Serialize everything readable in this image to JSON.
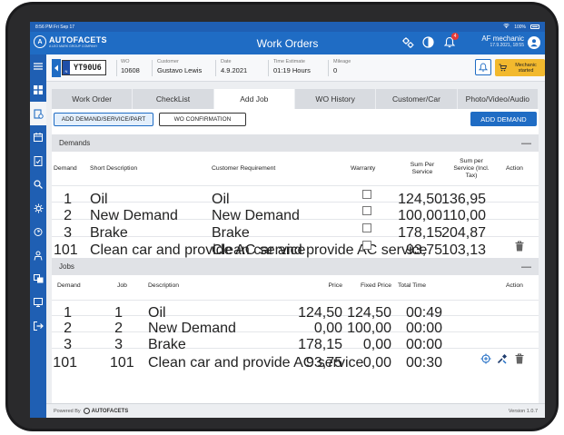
{
  "status_bar": {
    "time_date": "8:56 PM  Fri Sep 17",
    "battery": "100%"
  },
  "header": {
    "brand_name": "AUTOFACETS",
    "brand_sub": "A LEO MARK GROUP COMPANY",
    "title": "Work Orders",
    "notification_count": "4",
    "user_name": "AF mechanic",
    "user_date": "17.9.2021, 18:55"
  },
  "work_order": {
    "plate": "YT90U6",
    "plate_country": "N",
    "fields": [
      {
        "label": "WO",
        "value": "10608"
      },
      {
        "label": "Customer",
        "value": "Gustavo Lewis"
      },
      {
        "label": "Date",
        "value": "4.9.2021"
      },
      {
        "label": "Time Estimate",
        "value": "01:19 Hours"
      },
      {
        "label": "Mileage",
        "value": "0"
      }
    ],
    "mechanic_button": "Mechanic started"
  },
  "tabs": [
    {
      "label": "Work Order"
    },
    {
      "label": "CheckList"
    },
    {
      "label": "Add Job"
    },
    {
      "label": "WO History"
    },
    {
      "label": "Customer/Car"
    },
    {
      "label": "Photo/Video/Audio"
    }
  ],
  "actions": {
    "add_demand_service_part": "ADD DEMAND/SERVICE/PART",
    "wo_confirmation": "WO CONFIRMATION",
    "add_demand": "ADD DEMAND"
  },
  "demands": {
    "title": "Demands",
    "toggle": "—",
    "headers": {
      "demand": "Demand",
      "short_description": "Short Description",
      "customer_requirement": "Customer Requirement",
      "warranty": "Warranty",
      "sum_per_service": "Sum Per Service",
      "sum_incl_tax": "Sum per Service (Incl. Tax)",
      "action": "Action"
    },
    "rows": [
      {
        "demand": "1",
        "short": "Oil",
        "requirement": "Oil",
        "sum": "124,50",
        "sum_tax": "136,95"
      },
      {
        "demand": "2",
        "short": "New Demand",
        "requirement": "New Demand",
        "sum": "100,00",
        "sum_tax": "110,00"
      },
      {
        "demand": "3",
        "short": "Brake",
        "requirement": "Brake",
        "sum": "178,15",
        "sum_tax": "204,87"
      },
      {
        "demand": "101",
        "short": "Clean car and provide AC service",
        "requirement": "Clean car and provide AC service",
        "sum": "93,75",
        "sum_tax": "103,13"
      }
    ]
  },
  "jobs": {
    "title": "Jobs",
    "toggle": "—",
    "headers": {
      "demand": "Demand",
      "job": "Job",
      "description": "Description",
      "price": "Price",
      "fixed_price": "Fixed Price",
      "total_time": "Total Time",
      "action": "Action"
    },
    "rows": [
      {
        "demand": "1",
        "job": "1",
        "description": "Oil",
        "price": "124,50",
        "fixed": "124,50",
        "time": "00:49"
      },
      {
        "demand": "2",
        "job": "2",
        "description": "New Demand",
        "price": "0,00",
        "fixed": "100,00",
        "time": "00:00"
      },
      {
        "demand": "3",
        "job": "3",
        "description": "Brake",
        "price": "178,15",
        "fixed": "0,00",
        "time": "00:00"
      },
      {
        "demand": "101",
        "job": "101",
        "description": "Clean car and provide AC service",
        "price": "93,75",
        "fixed": "0,00",
        "time": "00:30"
      }
    ]
  },
  "footer": {
    "powered_by": "Powered By",
    "brand": "AUTOFACETS",
    "version": "Version 1.0.7"
  },
  "colors": {
    "primary": "#1f6cc4",
    "accent": "#f2b92e",
    "danger": "#e53935"
  }
}
